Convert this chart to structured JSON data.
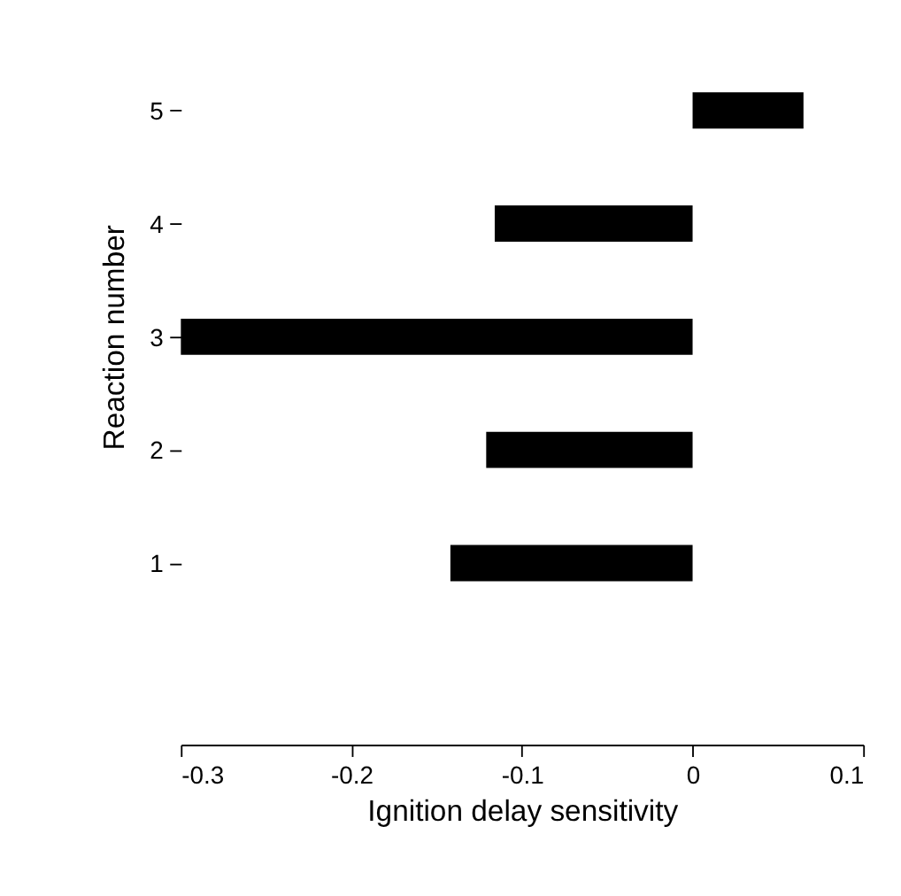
{
  "chart_data": {
    "type": "bar",
    "orientation": "horizontal",
    "xlabel": "Ignition delay sensitivity",
    "ylabel": "Reaction number",
    "categories": [
      "5",
      "4",
      "3",
      "2",
      "1"
    ],
    "values": [
      0.065,
      -0.116,
      -0.3,
      -0.121,
      -0.142
    ],
    "color": "#000000",
    "xlim": [
      -0.3,
      0.1
    ],
    "xticks": [
      -0.3,
      -0.2,
      -0.1,
      0,
      0.1
    ],
    "grid": false
  }
}
